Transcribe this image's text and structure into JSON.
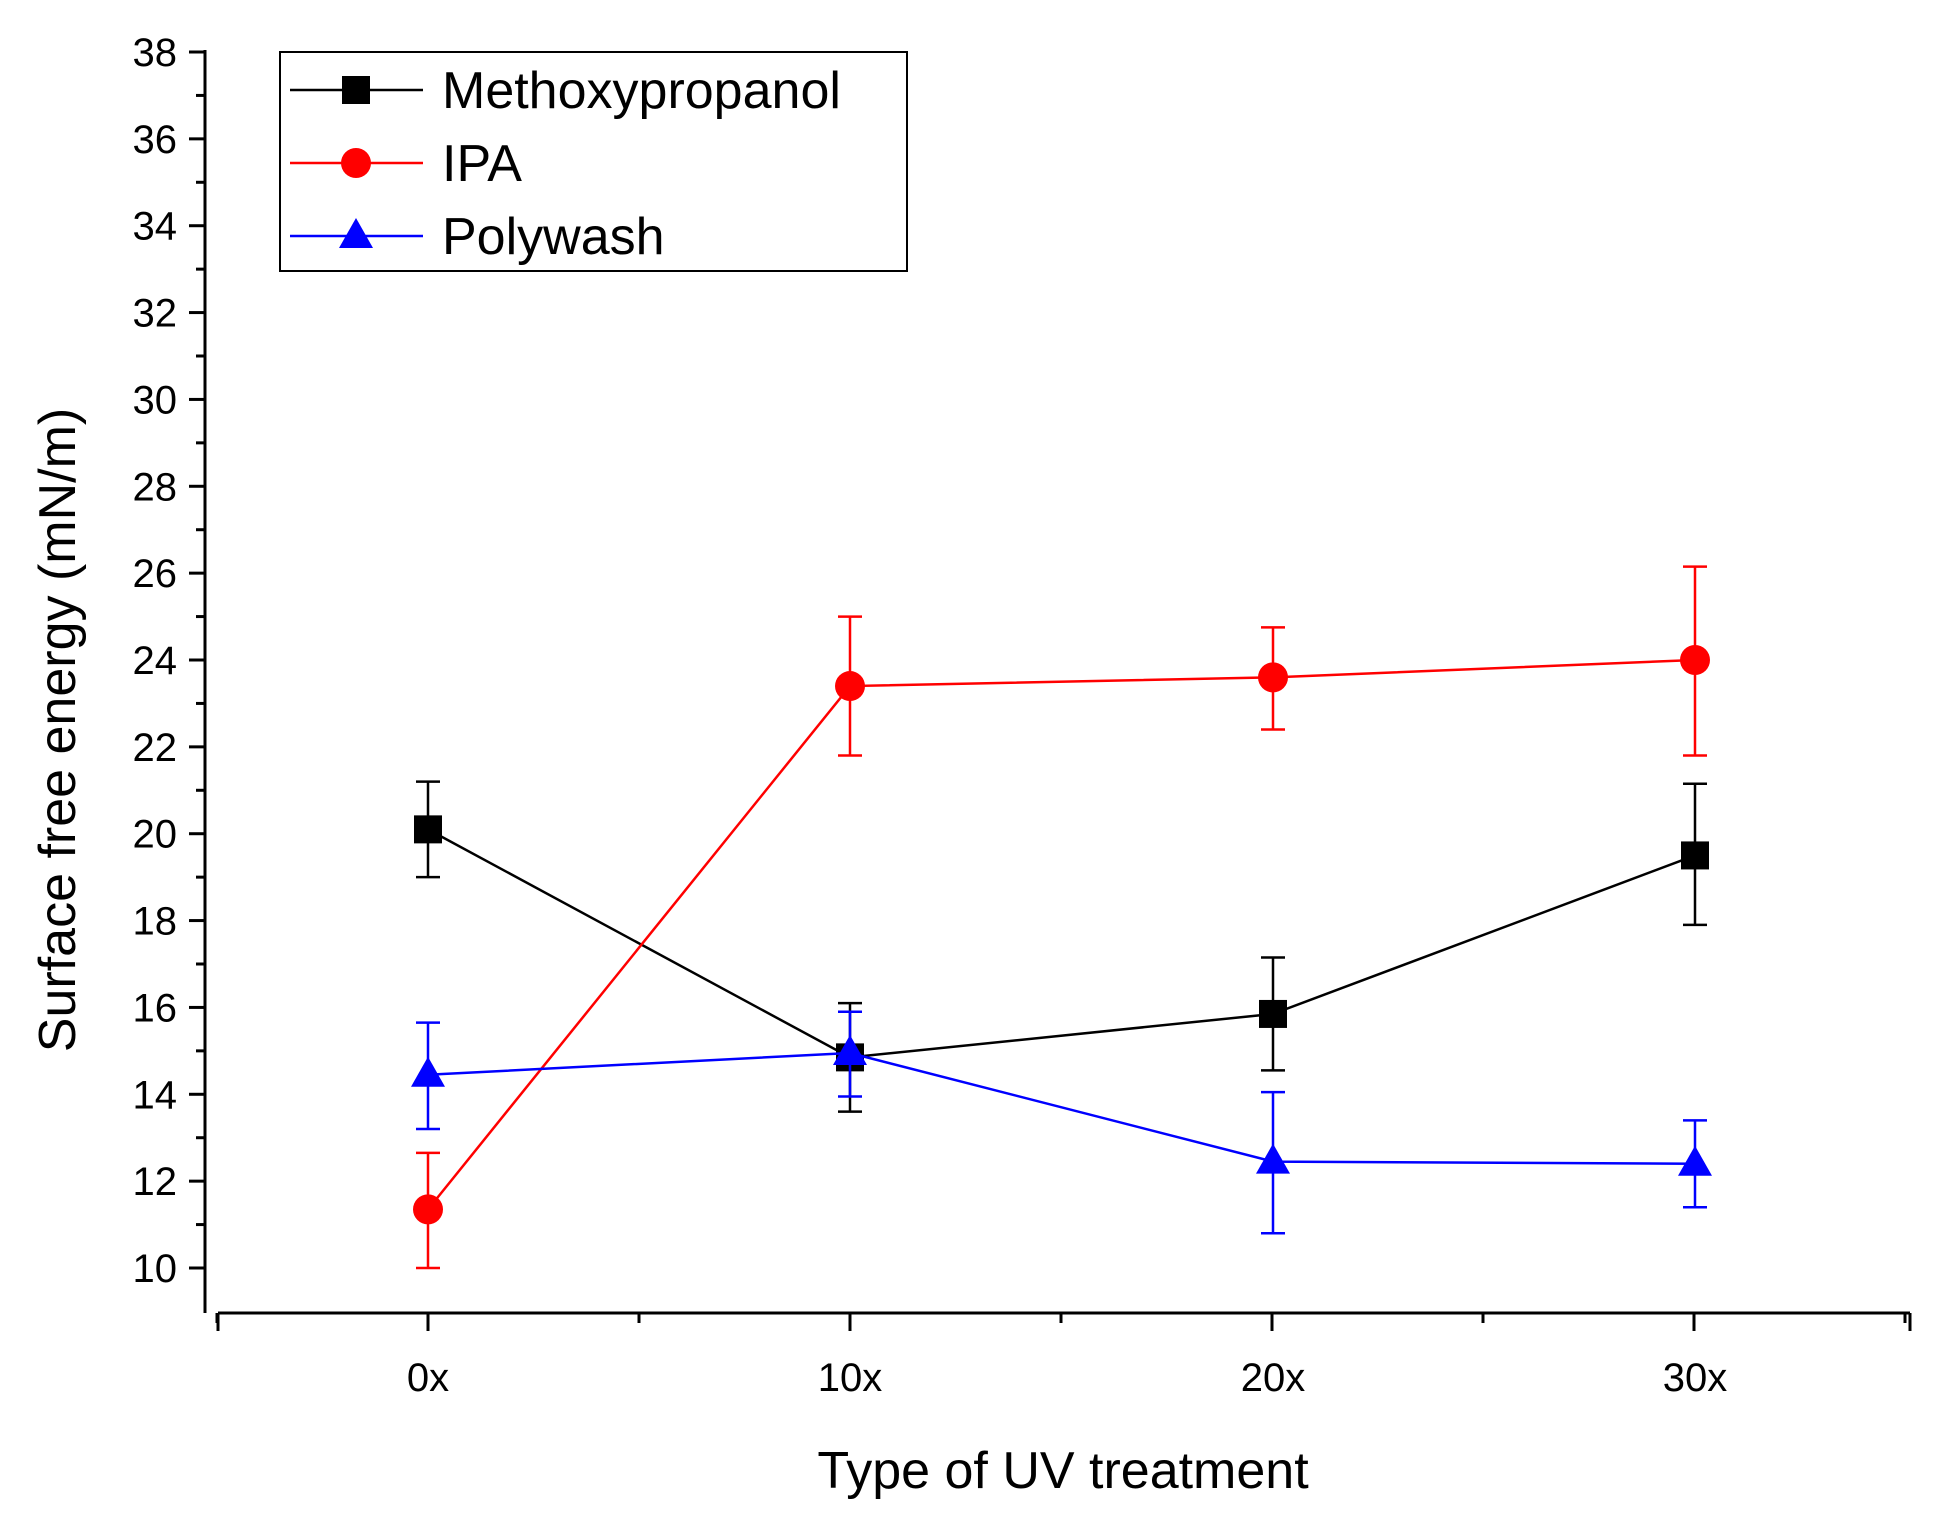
{
  "chart_data": {
    "type": "line",
    "title": "",
    "xlabel": "Type of UV treatment",
    "ylabel": "Surface free energy (mN/m)",
    "categories": [
      "0x",
      "10x",
      "20x",
      "30x"
    ],
    "ylim": [
      10,
      38
    ],
    "yticks": [
      10,
      12,
      14,
      16,
      18,
      20,
      22,
      24,
      26,
      28,
      30,
      32,
      34,
      36,
      38
    ],
    "grid": false,
    "legend_position": "top-left",
    "series": [
      {
        "name": "Methoxypropanol",
        "color": "#000000",
        "marker": "square",
        "values": [
          20.1,
          14.85,
          15.85,
          19.5
        ],
        "err_upper": [
          21.2,
          16.1,
          17.15,
          21.15
        ],
        "err_lower": [
          19.0,
          13.6,
          14.55,
          17.9
        ]
      },
      {
        "name": "IPA",
        "color": "#ff0000",
        "marker": "circle",
        "values": [
          11.35,
          23.4,
          23.6,
          24.0
        ],
        "err_upper": [
          12.65,
          25.0,
          24.75,
          26.15
        ],
        "err_lower": [
          10.0,
          21.8,
          22.4,
          21.8
        ]
      },
      {
        "name": "Polywash",
        "color": "#0000ff",
        "marker": "triangle",
        "values": [
          14.45,
          14.95,
          12.45,
          12.4
        ],
        "err_upper": [
          15.65,
          15.9,
          14.05,
          13.4
        ],
        "err_lower": [
          13.2,
          13.95,
          10.8,
          11.4
        ]
      }
    ]
  }
}
